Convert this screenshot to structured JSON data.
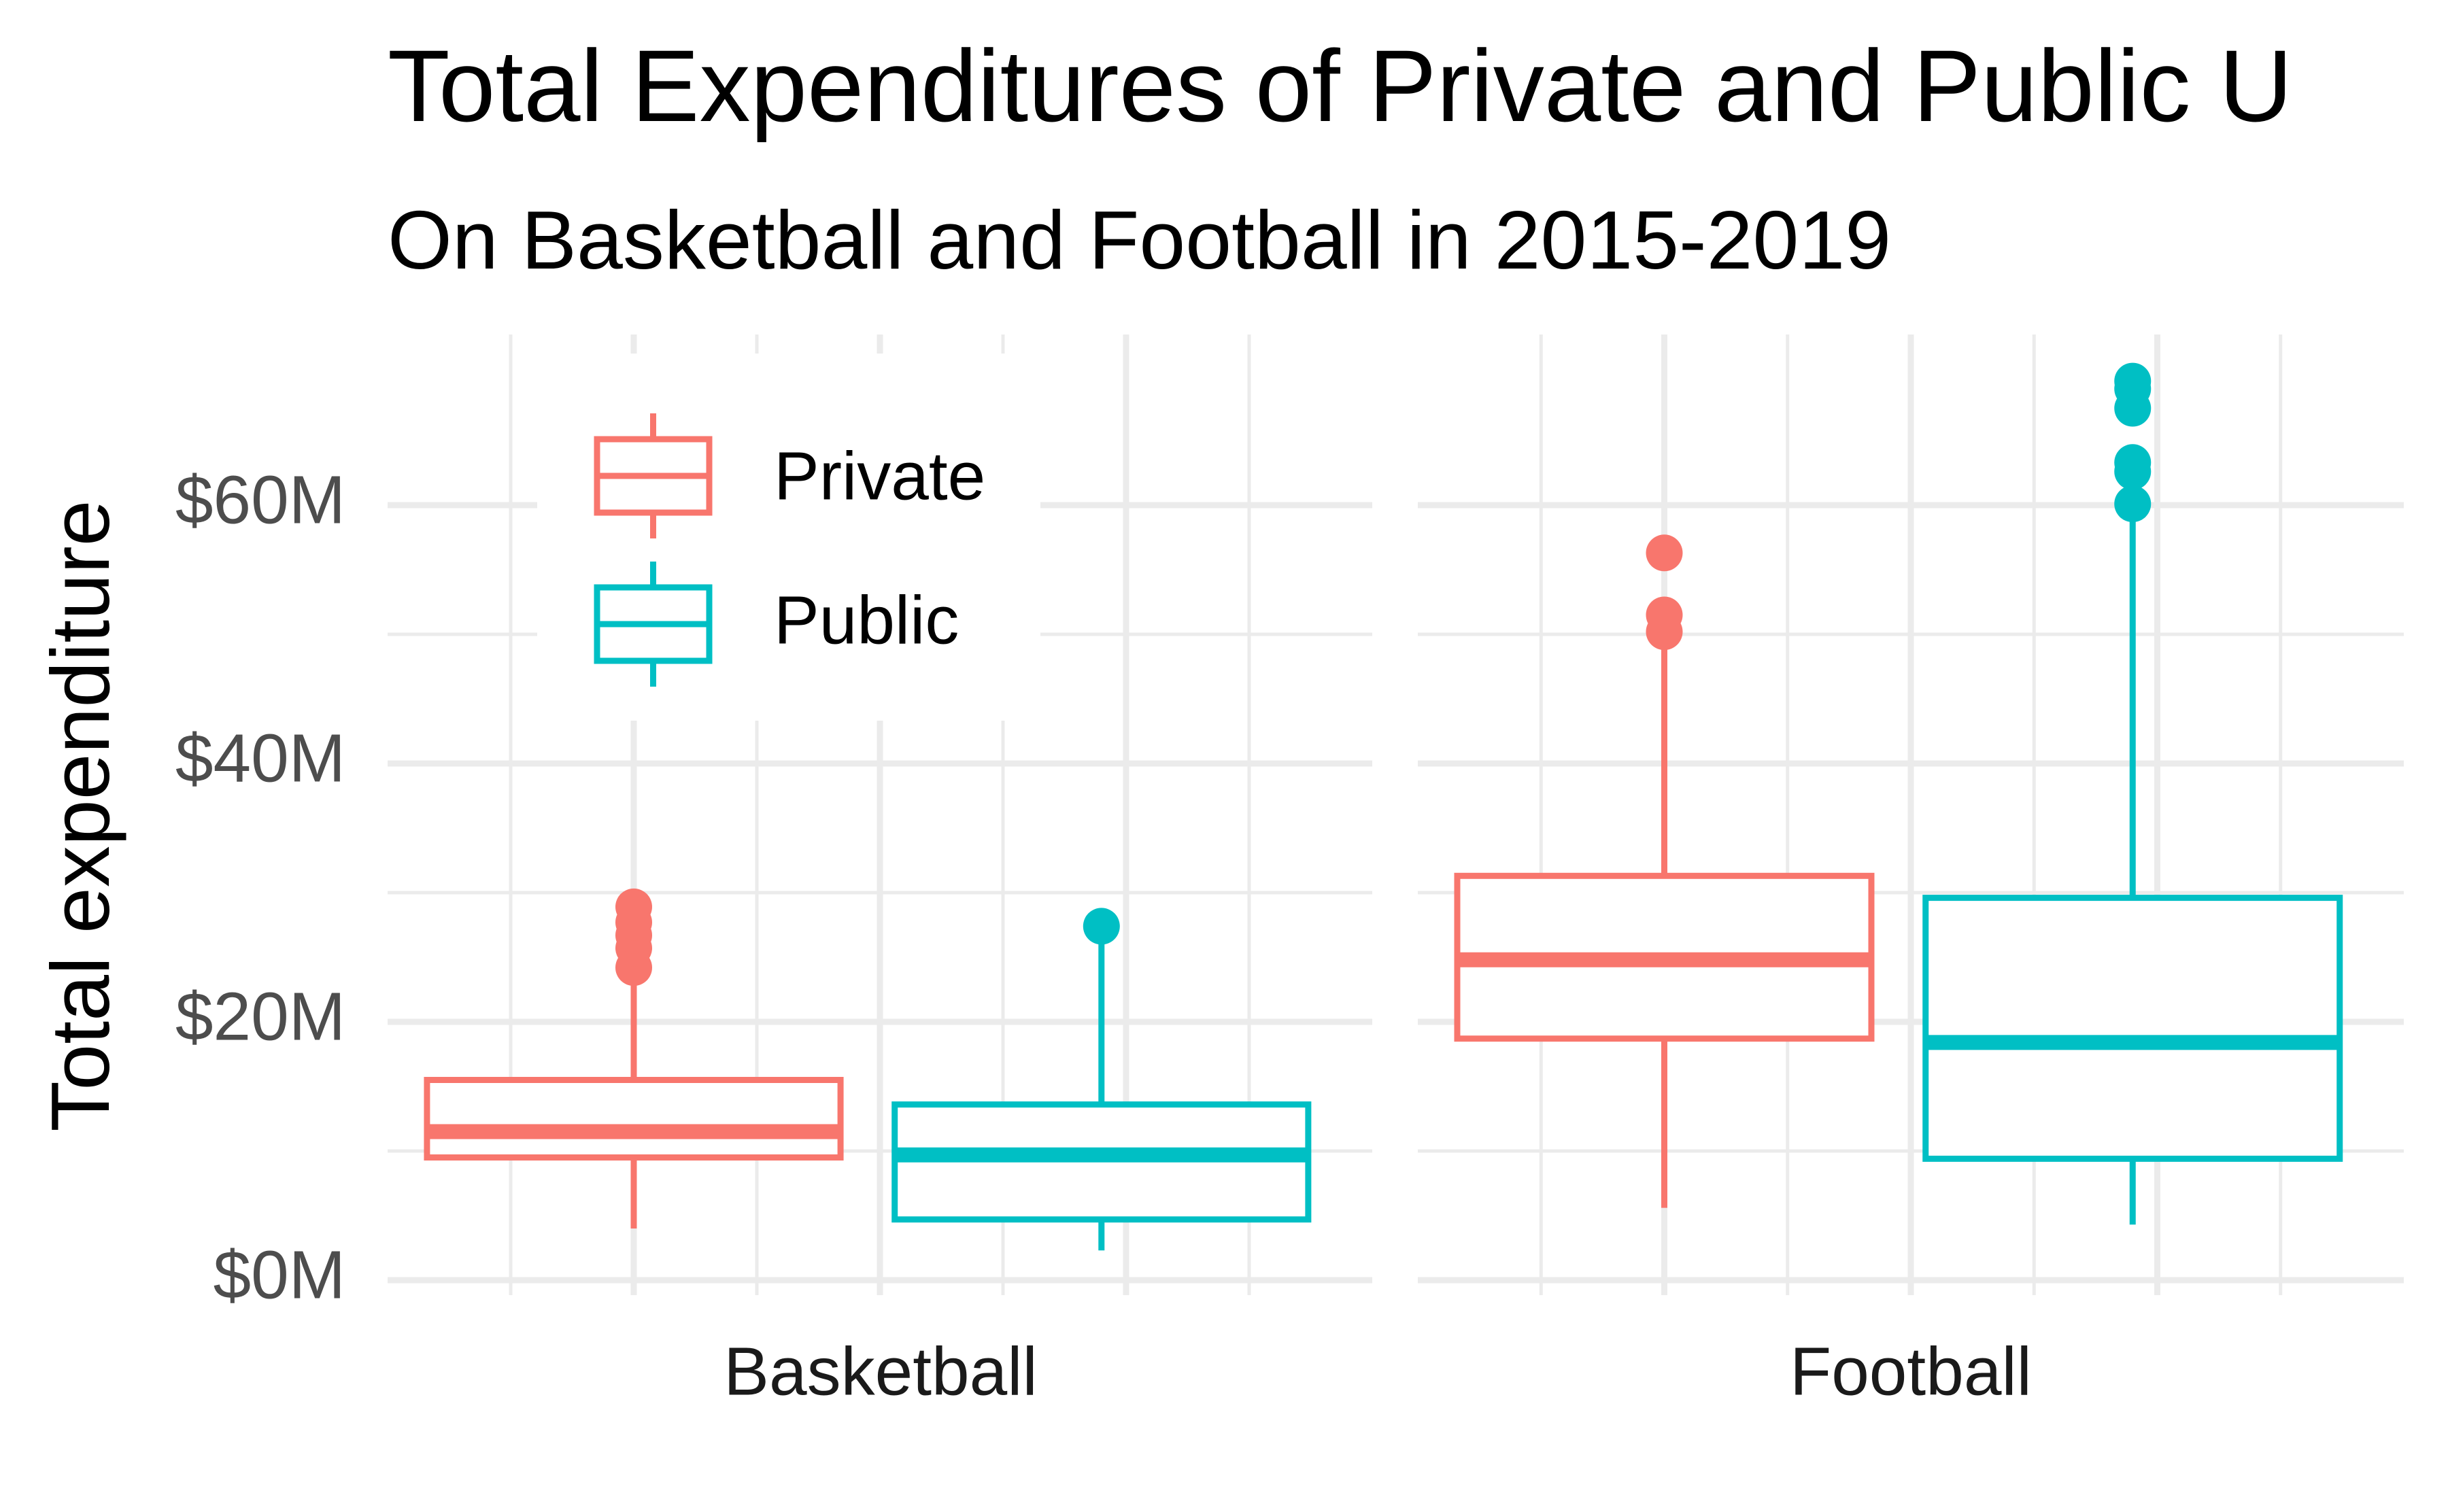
{
  "chart_data": {
    "type": "boxplot",
    "title": "Total Expenditures of Private and Public U",
    "subtitle": "On Basketball and Football in 2015-2019",
    "ylabel": "Total expenditure",
    "xlabel": "",
    "ylim": [
      0,
      70
    ],
    "y_unit": "$M",
    "yticks": [
      0,
      20,
      40,
      60
    ],
    "ytick_labels": [
      "$0M",
      "$20M",
      "$40M",
      "$60M"
    ],
    "grid": true,
    "legend_position": "top-left",
    "colors": {
      "Private": "#F8766D",
      "Public": "#00BFC4"
    },
    "series": [
      {
        "name": "Private",
        "color": "#F8766D"
      },
      {
        "name": "Public",
        "color": "#00BFC4"
      }
    ],
    "panels": [
      {
        "label": "Basketball",
        "boxes": [
          {
            "series": "Private",
            "min": 4.0,
            "q1": 9.5,
            "median": 11.5,
            "q3": 15.5,
            "max": 23.5,
            "outliers": [
              24.2,
              25.7,
              26.7,
              27.7,
              28.9
            ]
          },
          {
            "series": "Public",
            "min": 2.3,
            "q1": 4.7,
            "median": 9.7,
            "q3": 13.6,
            "max": 27.4,
            "outliers": [
              27.4
            ]
          }
        ]
      },
      {
        "label": "Football",
        "boxes": [
          {
            "series": "Private",
            "min": 5.6,
            "q1": 18.7,
            "median": 24.8,
            "q3": 31.3,
            "max": 50.0,
            "outliers": [
              50.2,
              51.5,
              56.3
            ]
          },
          {
            "series": "Public",
            "min": 4.3,
            "q1": 9.4,
            "median": 18.4,
            "q3": 29.6,
            "max": 59.5,
            "outliers": [
              60.1,
              62.6,
              63.3,
              67.5,
              69.0,
              69.6
            ]
          }
        ]
      }
    ]
  }
}
